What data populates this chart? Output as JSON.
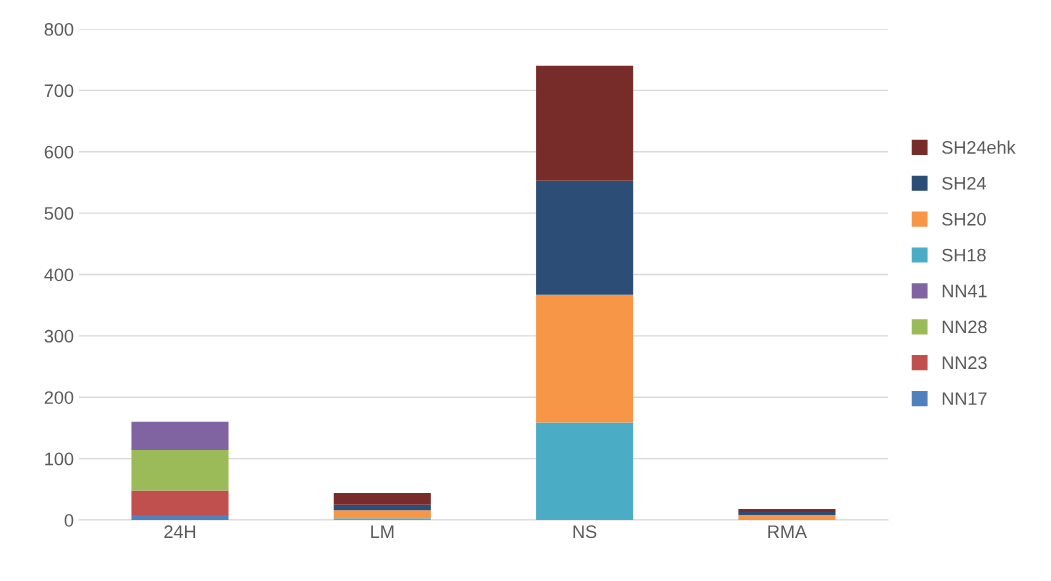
{
  "chart_data": {
    "type": "bar",
    "stacked": true,
    "categories": [
      "24H",
      "LM",
      "NS",
      "RMA"
    ],
    "series": [
      {
        "name": "NN17",
        "color": "#4f81bd",
        "values": [
          8,
          0,
          0,
          0
        ]
      },
      {
        "name": "NN23",
        "color": "#c0504d",
        "values": [
          40,
          0,
          0,
          0
        ]
      },
      {
        "name": "NN28",
        "color": "#9bbb59",
        "values": [
          66,
          0,
          0,
          0
        ]
      },
      {
        "name": "NN41",
        "color": "#8064a2",
        "values": [
          46,
          0,
          0,
          0
        ]
      },
      {
        "name": "SH18",
        "color": "#4bacc6",
        "values": [
          0,
          3,
          159,
          0
        ]
      },
      {
        "name": "SH20",
        "color": "#f79646",
        "values": [
          0,
          13,
          208,
          8
        ]
      },
      {
        "name": "SH24",
        "color": "#2c4d75",
        "values": [
          0,
          9,
          186,
          5
        ]
      },
      {
        "name": "SH24ehk",
        "color": "#772c2a",
        "values": [
          0,
          19,
          187,
          5
        ]
      }
    ],
    "ylim": [
      0,
      800
    ],
    "yticks": [
      0,
      100,
      200,
      300,
      400,
      500,
      600,
      700,
      800
    ],
    "grid": "y",
    "legend": "right"
  }
}
